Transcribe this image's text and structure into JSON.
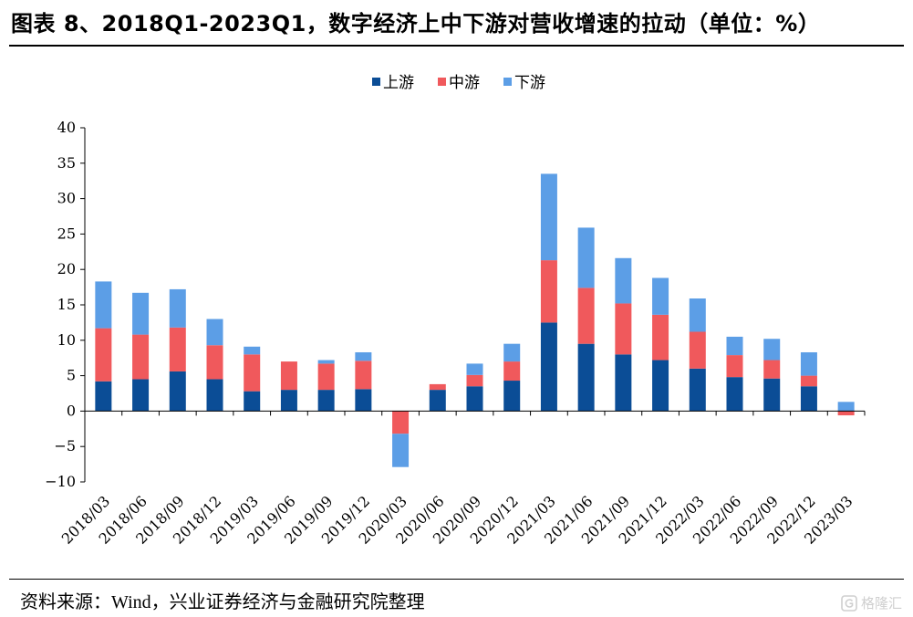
{
  "title": "图表 8、2018Q1-2023Q1，数字经济上中下游对营收增速的拉动（单位：%）",
  "source": {
    "prefix": "资料来源：",
    "en": "Wind",
    "suffix": "，兴业证券经济与金融研究院整理"
  },
  "watermark": {
    "text": "格隆汇",
    "icon": "g-logo-icon"
  },
  "chart_data": {
    "type": "bar",
    "stacked": true,
    "categories": [
      "2018/03",
      "2018/06",
      "2018/09",
      "2018/12",
      "2019/03",
      "2019/06",
      "2019/09",
      "2019/12",
      "2020/03",
      "2020/06",
      "2020/09",
      "2020/12",
      "2021/03",
      "2021/06",
      "2021/09",
      "2021/12",
      "2022/03",
      "2022/06",
      "2022/09",
      "2022/12",
      "2023/03"
    ],
    "series": [
      {
        "name": "上游",
        "color": "#0b4d96",
        "values": [
          4.2,
          4.5,
          5.6,
          4.5,
          2.8,
          3.0,
          3.0,
          3.1,
          0.0,
          3.0,
          3.5,
          4.3,
          12.5,
          9.5,
          8.0,
          7.2,
          6.0,
          4.8,
          4.6,
          3.5,
          0.0
        ]
      },
      {
        "name": "中游",
        "color": "#f0595c",
        "values": [
          7.5,
          6.3,
          6.2,
          4.8,
          5.2,
          4.0,
          3.7,
          4.0,
          -3.2,
          0.8,
          1.6,
          2.7,
          8.8,
          7.9,
          7.2,
          6.4,
          5.2,
          3.1,
          2.6,
          1.5,
          -0.6
        ]
      },
      {
        "name": "下游",
        "color": "#5c9ee6",
        "values": [
          6.6,
          5.9,
          5.4,
          3.7,
          1.1,
          0.0,
          0.5,
          1.2,
          -4.7,
          0.0,
          1.6,
          2.5,
          12.2,
          8.5,
          6.4,
          5.2,
          4.7,
          2.6,
          3.0,
          3.3,
          1.3
        ]
      }
    ],
    "yticks": [
      -10,
      -5,
      0,
      5,
      10,
      15,
      20,
      25,
      30,
      35,
      40
    ],
    "ylim": [
      -10,
      40
    ],
    "grid": false,
    "legend_position": "top-center"
  }
}
